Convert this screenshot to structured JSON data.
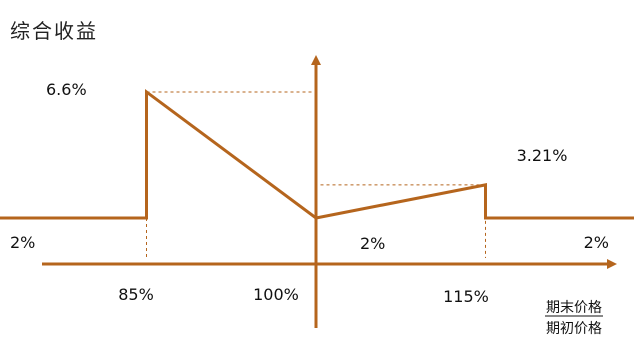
{
  "chart_data": {
    "type": "line",
    "title": "综合收益",
    "xlabel": "期末价格/期初价格",
    "xlabel_numerator": "期末价格",
    "xlabel_denominator": "期初价格",
    "ylabel": "",
    "x_ticks": [
      "85%",
      "100%",
      "115%"
    ],
    "y_floor_labels": [
      "2%",
      "2%",
      "2%"
    ],
    "series": [
      {
        "x": [
          0.7,
          0.85,
          0.85,
          1.0,
          1.15,
          1.15,
          1.3
        ],
        "y": [
          2,
          2,
          6.6,
          2,
          3.21,
          2,
          2
        ]
      }
    ],
    "annotations": [
      {
        "x": 0.85,
        "y": 6.6,
        "label": "6.6%"
      },
      {
        "x": 1.15,
        "y": 3.21,
        "label": "3.21%"
      }
    ],
    "colors": {
      "line": "#b5651d",
      "guide": "#b5651d"
    }
  }
}
